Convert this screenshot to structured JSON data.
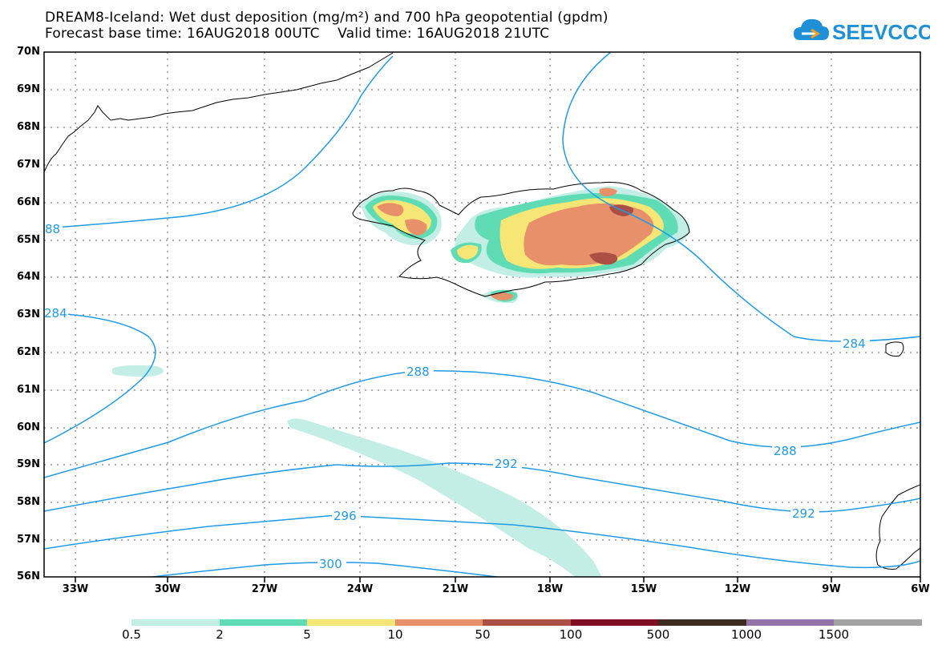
{
  "title": {
    "line1": "DREAM8-Iceland: Wet dust deposition (mg/m²) and 700 hPa geopotential (gpdm)",
    "base_label": "Forecast base time:",
    "base_time": "16AUG2018 00UTC",
    "valid_label": "Valid time:",
    "valid_time": "16AUG2018 21UTC"
  },
  "logo": {
    "text": "SEEVCCC",
    "icon": "cloud-icon",
    "color": "#1e90d8"
  },
  "map": {
    "lat_labels": [
      "70N",
      "69N",
      "68N",
      "67N",
      "66N",
      "65N",
      "64N",
      "63N",
      "62N",
      "61N",
      "60N",
      "59N",
      "58N",
      "57N",
      "56N"
    ],
    "lon_labels": [
      "33W",
      "30W",
      "27W",
      "24W",
      "21W",
      "18W",
      "15W",
      "12W",
      "9W",
      "6W"
    ],
    "contour_color": "#1e9be5",
    "contour_labels": {
      "c288_west": "88",
      "c284_west": "284",
      "c284_east": "284",
      "c288_mid": "288",
      "c288_east": "288",
      "c292_mid": "292",
      "c292_east": "292",
      "c296": "296",
      "c300": "300"
    }
  },
  "legend": {
    "labels": [
      "0.5",
      "2",
      "5",
      "10",
      "50",
      "100",
      "500",
      "1000",
      "1500"
    ],
    "colors": [
      "#c3eee6",
      "#5fdcb4",
      "#f6e675",
      "#e79069",
      "#ac4f45",
      "#7e0c22",
      "#3c2b1e",
      "#9474a6",
      "#a3a3a3"
    ]
  }
}
